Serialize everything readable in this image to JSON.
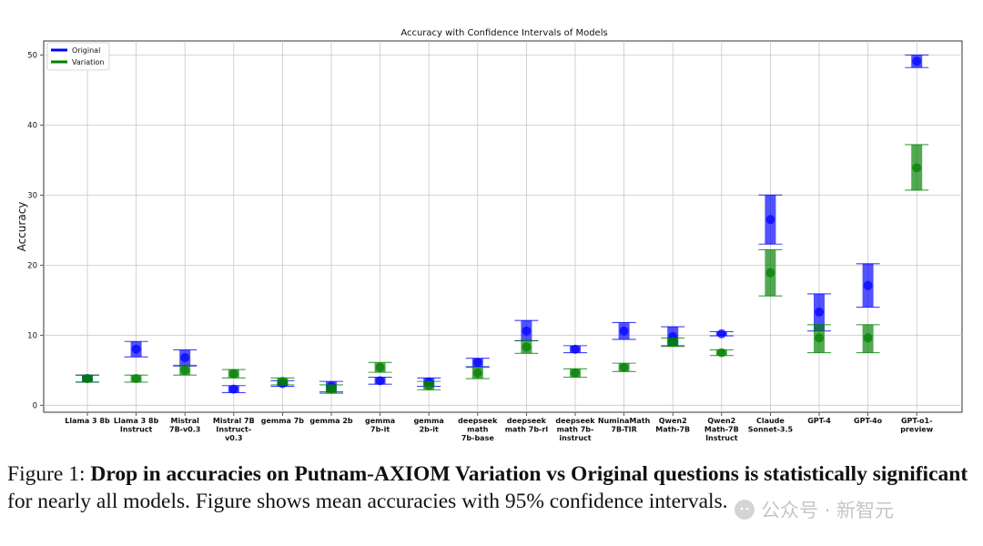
{
  "chart_data": {
    "type": "errorbar",
    "title": "Accuracy with Confidence Intervals of Models",
    "xlabel": "",
    "ylabel": "Accuracy",
    "ylim": [
      -1,
      52
    ],
    "yticks": [
      0,
      10,
      20,
      30,
      40,
      50
    ],
    "grid": true,
    "legend_position": "top-left",
    "categories": [
      [
        "Llama 3 8b"
      ],
      [
        "Llama 3 8b",
        "Instruct"
      ],
      [
        "Mistral",
        "7B-v0.3"
      ],
      [
        "Mistral 7B",
        "Instruct-",
        "v0.3"
      ],
      [
        "gemma 7b"
      ],
      [
        "gemma 2b"
      ],
      [
        "gemma",
        "7b-it"
      ],
      [
        "gemma",
        "2b-it"
      ],
      [
        "deepseek",
        "math",
        "7b-base"
      ],
      [
        "deepseek",
        "math 7b-rl"
      ],
      [
        "deepseek",
        "math 7b-",
        "instruct"
      ],
      [
        "NuminaMath",
        "7B-TIR"
      ],
      [
        "Qwen2",
        "Math-7B"
      ],
      [
        "Qwen2",
        "Math-7B",
        "Instruct"
      ],
      [
        "Claude",
        "Sonnet-3.5"
      ],
      [
        "GPT-4"
      ],
      [
        "GPT-4o"
      ],
      [
        "GPT-o1-",
        "preview"
      ]
    ],
    "series": [
      {
        "name": "Original",
        "color": "#0000ff",
        "mean": [
          3.8,
          8.0,
          6.8,
          2.3,
          3.1,
          2.7,
          3.5,
          3.3,
          6.1,
          10.6,
          8.0,
          10.6,
          9.8,
          10.2,
          26.5,
          13.3,
          17.1,
          49.1
        ],
        "lower": [
          3.3,
          6.9,
          5.6,
          1.8,
          2.7,
          1.9,
          3.0,
          2.7,
          5.5,
          9.2,
          7.5,
          9.4,
          8.5,
          9.9,
          23.0,
          10.6,
          14.0,
          48.2
        ],
        "upper": [
          4.3,
          9.1,
          7.9,
          2.8,
          3.5,
          3.4,
          4.0,
          3.9,
          6.7,
          12.1,
          8.5,
          11.8,
          11.2,
          10.5,
          30.0,
          15.9,
          20.2,
          50.0
        ]
      },
      {
        "name": "Variation",
        "color": "#008000",
        "mean": [
          3.8,
          3.8,
          5.0,
          4.5,
          3.4,
          2.3,
          5.4,
          2.8,
          4.6,
          8.3,
          4.6,
          5.4,
          9.0,
          7.5,
          18.9,
          9.6,
          9.6,
          33.9
        ],
        "lower": [
          3.3,
          3.3,
          4.3,
          3.9,
          2.9,
          1.7,
          4.7,
          2.2,
          3.8,
          7.4,
          4.0,
          4.8,
          8.4,
          7.1,
          15.6,
          7.5,
          7.5,
          30.7
        ],
        "upper": [
          4.3,
          4.3,
          5.7,
          5.1,
          3.9,
          2.9,
          6.1,
          3.4,
          5.4,
          9.2,
          5.2,
          6.0,
          9.6,
          7.9,
          22.2,
          11.5,
          11.5,
          37.2
        ]
      }
    ]
  },
  "caption": {
    "label": "Figure 1: ",
    "bold": "Drop in accuracies on Putnam-AXIOM Variation vs Original questions is statistically significant",
    "rest": " for nearly all models. Figure shows mean accuracies with 95% confidence intervals."
  },
  "watermark": {
    "text": "公众号 · 新智元"
  }
}
